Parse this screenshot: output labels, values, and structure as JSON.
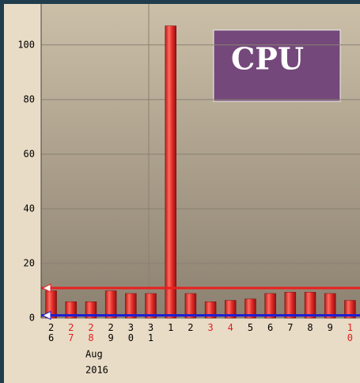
{
  "chart_data": {
    "type": "bar",
    "title": "CPU",
    "categories": [
      "26",
      "27",
      "28",
      "29",
      "30",
      "31",
      "1",
      "2",
      "3",
      "4",
      "5",
      "6",
      "7",
      "8",
      "9",
      "10"
    ],
    "values": [
      10,
      6,
      6,
      10,
      9,
      9,
      107,
      9,
      6,
      6.5,
      7,
      9,
      9.5,
      9.5,
      9,
      6.5
    ],
    "color": "#e8302c",
    "label_colors": [
      "#000",
      "#e02020",
      "#e02020",
      "#000",
      "#000",
      "#000",
      "#000",
      "#000",
      "#e02020",
      "#e02020",
      "#000",
      "#000",
      "#000",
      "#000",
      "#000",
      "#e02020"
    ],
    "month_label": "Aug",
    "year_label": "2016",
    "reference_lines": [
      {
        "value": 11,
        "color": "#e82020"
      },
      {
        "value": 1,
        "color": "#2020d0"
      }
    ],
    "ylim": [
      0,
      115
    ],
    "yticks": [
      0,
      20,
      40,
      60,
      80,
      100
    ],
    "grid": true
  }
}
